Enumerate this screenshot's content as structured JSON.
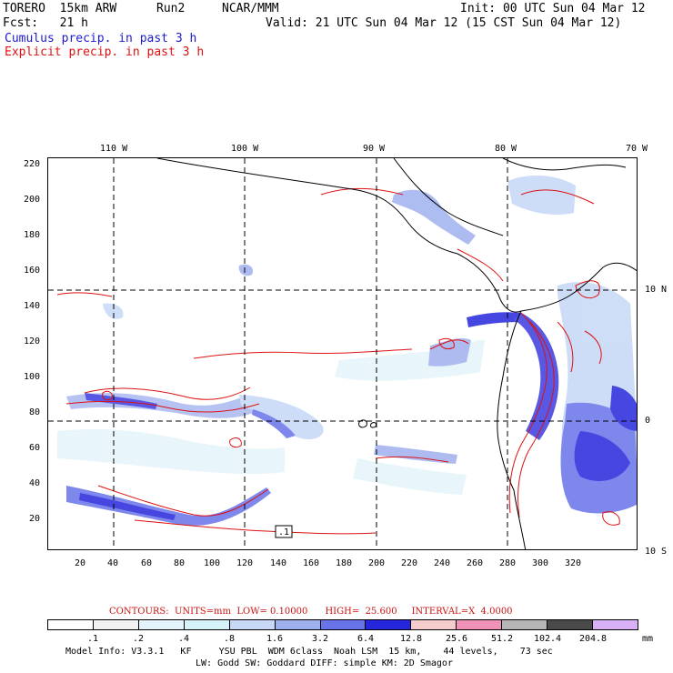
{
  "header": {
    "model": "TORERO  15km ARW",
    "run": "Run2",
    "center": "NCAR/MMM",
    "init": "Init: 00 UTC Sun 04 Mar 12",
    "fcst": "Fcst:   21 h",
    "valid": "Valid: 21 UTC Sun 04 Mar 12 (15 CST Sun 04 Mar 12)",
    "cumulus_label": "Cumulus precip. in past 3 h",
    "explicit_label": "Explicit precip. in past 3 h"
  },
  "map": {
    "lon_labels": [
      "110 W",
      "100 W",
      "90 W",
      "80 W",
      "70 W"
    ],
    "lat_labels": [
      "10 N",
      "0",
      "10 S"
    ],
    "x_ticks": [
      "20",
      "40",
      "60",
      "80",
      "100",
      "120",
      "140",
      "160",
      "180",
      "200",
      "220",
      "240",
      "260",
      "280",
      "300",
      "320"
    ],
    "y_ticks": [
      "220",
      "200",
      "180",
      "160",
      "140",
      "120",
      "100",
      "80",
      "60",
      "40",
      "20"
    ],
    "box_marker": ".1"
  },
  "contours": {
    "text": "CONTOURS:  UNITS=mm  LOW= 0.10000      HIGH=  25.600     INTERVAL=X  4.0000"
  },
  "color_scale": {
    "labels": [
      ".1",
      ".2",
      ".4",
      ".8",
      "1.6",
      "3.2",
      "6.4",
      "12.8",
      "25.6",
      "51.2",
      "102.4",
      "204.8"
    ],
    "unit": "mm",
    "colors": [
      "#ffffff",
      "#f2f2f2",
      "#e4f4fb",
      "#d4f2f8",
      "#c6d8f6",
      "#9fb0ef",
      "#6873e8",
      "#2626dc",
      "#f5cccc",
      "#f091b8",
      "#b5b5b5",
      "#4a4a4a",
      "#d8b0f5"
    ]
  },
  "footer": {
    "line1": "Model Info: V3.3.1   KF     YSU PBL  WDM 6class  Noah LSM  15 km,    44 levels,    73 sec",
    "line2": "LW: Godd SW: Goddard DIFF: simple KM: 2D Smagor"
  }
}
